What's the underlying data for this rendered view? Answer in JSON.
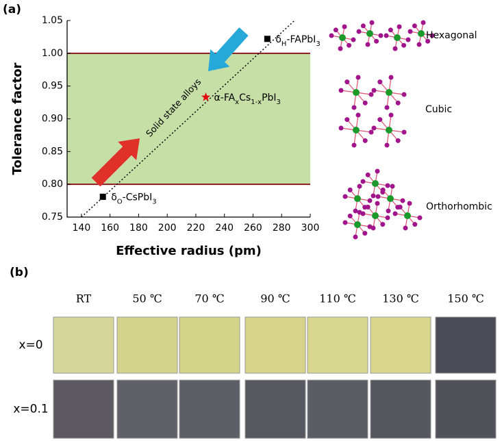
{
  "panel_labels": [
    "(a)",
    "(b)"
  ],
  "chart_data": {
    "type": "scatter",
    "xlabel": "Effective radius (pm)",
    "ylabel": "Tolerance factor",
    "xlim": [
      130,
      300
    ],
    "xticks": [
      140,
      160,
      180,
      200,
      220,
      240,
      260,
      280,
      300
    ],
    "ylim": [
      0.75,
      1.05
    ],
    "yticks": [
      0.75,
      {
        "value": 0.8,
        "label": "0.80"
      },
      0.85,
      {
        "value": 0.9,
        "label": "0.90"
      },
      0.95,
      {
        "value": 1.0,
        "label": "1.00"
      },
      1.05
    ],
    "band": {
      "ylim": [
        0.8,
        1.0
      ],
      "color": "#c6dfa6",
      "edge_color": "#8b1a1a"
    },
    "fit_line": {
      "x": [
        140,
        289
      ],
      "y": [
        0.75,
        1.05
      ]
    },
    "annotation": "Solid state alloys",
    "points": [
      {
        "x": 155,
        "y": 0.781,
        "marker": "square",
        "color": "#000000",
        "label": [
          {
            "text": "δ"
          },
          {
            "text": "O",
            "sub": true
          },
          {
            "text": "-CsPbI"
          },
          {
            "text": "3",
            "sub": true
          }
        ]
      },
      {
        "x": 227,
        "y": 0.933,
        "marker": "star",
        "color": "#e01010",
        "label": [
          {
            "text": "α-FA"
          },
          {
            "text": "x",
            "sub": true
          },
          {
            "text": "Cs"
          },
          {
            "text": "1-x",
            "sub": true
          },
          {
            "text": "PbI"
          },
          {
            "text": "3",
            "sub": true
          }
        ]
      },
      {
        "x": 270,
        "y": 1.022,
        "marker": "square",
        "color": "#000000",
        "label": [
          {
            "text": "δ"
          },
          {
            "text": "H",
            "sub": true
          },
          {
            "text": "-FAPbI"
          },
          {
            "text": "3",
            "sub": true
          }
        ]
      }
    ]
  },
  "structures": [
    "Hexagonal",
    "Cubic",
    "Orthorhombic"
  ],
  "photos": {
    "columns": [
      "RT",
      "50 ℃",
      "70 ℃",
      "90 ℃",
      "110 ℃",
      "130 ℃",
      "150 ℃"
    ],
    "rows": [
      {
        "label": "x=0",
        "colors": [
          "#d4d69a",
          "#d2d38c",
          "#d4d38a",
          "#d6d48a",
          "#d8d790",
          "#d8d68c",
          "#4a4d55"
        ]
      },
      {
        "label": "x=0.1",
        "colors": [
          "#5c5a60",
          "#606168",
          "#5d5f66",
          "#56585f",
          "#5b5d64",
          "#55575e",
          "#505258"
        ]
      }
    ]
  }
}
